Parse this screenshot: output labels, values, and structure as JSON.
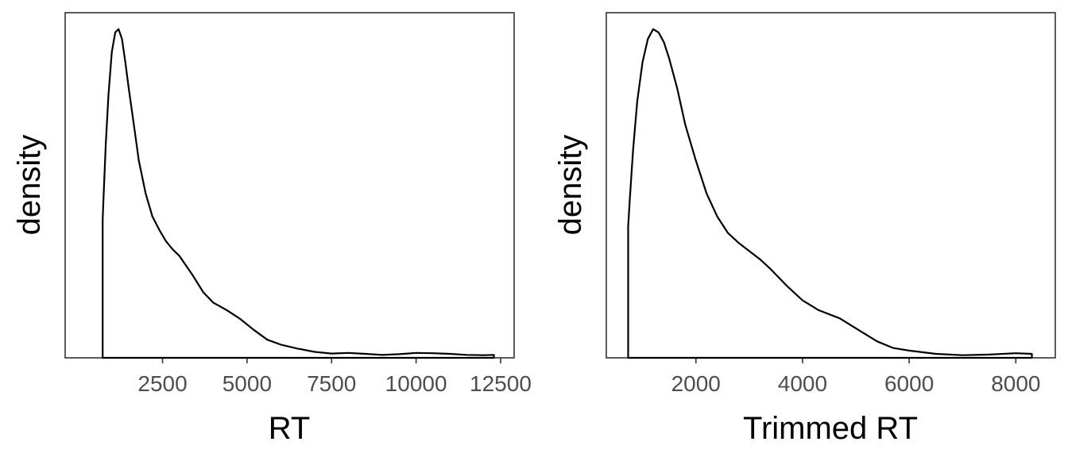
{
  "chart_data": [
    {
      "type": "area",
      "xlabel": "RT",
      "ylabel": "density",
      "xticks": [
        2500,
        5000,
        7500,
        10000,
        12500
      ],
      "tick_labels": [
        "2500",
        "5000",
        "7500",
        "10000",
        "12500"
      ],
      "xlim": [
        -380,
        12900
      ],
      "ylim": [
        0,
        1.05
      ],
      "y_ticks_shown": false,
      "grid": false,
      "series": [
        {
          "x": [
            730,
            760,
            820,
            900,
            1000,
            1100,
            1200,
            1300,
            1400,
            1500,
            1650,
            1800,
            2000,
            2200,
            2400,
            2600,
            2800,
            3000,
            3200,
            3400,
            3700,
            4000,
            4400,
            4800,
            5200,
            5600,
            6000,
            6500,
            7000,
            7500,
            8000,
            8500,
            9000,
            9500,
            10000,
            10500,
            11000,
            11500,
            12000,
            12300
          ],
          "y": [
            0.42,
            0.5,
            0.65,
            0.8,
            0.93,
            0.99,
            1.0,
            0.97,
            0.9,
            0.82,
            0.71,
            0.6,
            0.5,
            0.43,
            0.39,
            0.355,
            0.33,
            0.31,
            0.28,
            0.25,
            0.2,
            0.168,
            0.145,
            0.118,
            0.085,
            0.055,
            0.04,
            0.028,
            0.018,
            0.013,
            0.015,
            0.012,
            0.009,
            0.011,
            0.015,
            0.014,
            0.012,
            0.009,
            0.008,
            0.009
          ]
        }
      ]
    },
    {
      "type": "area",
      "xlabel": "Trimmed RT",
      "ylabel": "density",
      "xticks": [
        2000,
        4000,
        6000,
        8000
      ],
      "tick_labels": [
        "2000",
        "4000",
        "6000",
        "8000"
      ],
      "xlim": [
        320,
        8740
      ],
      "ylim": [
        0,
        1.05
      ],
      "y_ticks_shown": false,
      "grid": false,
      "series": [
        {
          "x": [
            730,
            760,
            820,
            900,
            1000,
            1100,
            1200,
            1300,
            1400,
            1500,
            1650,
            1800,
            2000,
            2200,
            2400,
            2600,
            2800,
            3000,
            3200,
            3400,
            3700,
            4000,
            4300,
            4700,
            5100,
            5400,
            5700,
            6000,
            6500,
            7000,
            7500,
            8000,
            8300
          ],
          "y": [
            0.4,
            0.48,
            0.63,
            0.78,
            0.9,
            0.97,
            1.0,
            0.99,
            0.96,
            0.91,
            0.82,
            0.71,
            0.6,
            0.5,
            0.43,
            0.38,
            0.35,
            0.325,
            0.3,
            0.27,
            0.22,
            0.175,
            0.145,
            0.12,
            0.08,
            0.05,
            0.03,
            0.022,
            0.012,
            0.008,
            0.01,
            0.014,
            0.012
          ]
        }
      ]
    }
  ]
}
